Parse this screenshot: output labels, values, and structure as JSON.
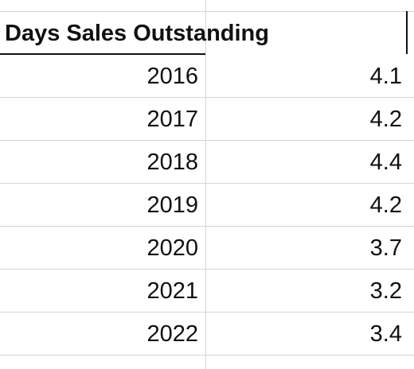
{
  "title": "Days Sales Outstanding",
  "table": {
    "rows": [
      [
        2016,
        4.1
      ],
      [
        2017,
        4.2
      ],
      [
        2018,
        4.4
      ],
      [
        2019,
        4.2
      ],
      [
        2020,
        3.7
      ],
      [
        2021,
        3.2
      ],
      [
        2022,
        3.4
      ]
    ]
  }
}
